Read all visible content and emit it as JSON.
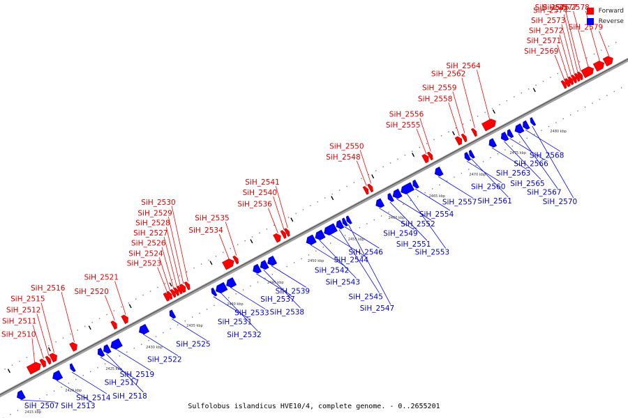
{
  "caption": "Sulfolobus islandicus HVE10/4, complete genome. - 0..2655201",
  "legend": [
    {
      "label": "Forward",
      "color": "#ff0000"
    },
    {
      "label": "Reverse",
      "color": "#0000ff"
    }
  ],
  "scale_ticks": [
    {
      "kbp": 2415,
      "label": "2415 kbp"
    },
    {
      "kbp": 2420,
      "label": "2420 kbp"
    },
    {
      "kbp": 2425,
      "label": "2425 kbp"
    },
    {
      "kbp": 2430,
      "label": "2430 kbp"
    },
    {
      "kbp": 2435,
      "label": "2435 kbp"
    },
    {
      "kbp": 2440,
      "label": "2440 kbp"
    },
    {
      "kbp": 2445,
      "label": "2445 kbp"
    },
    {
      "kbp": 2450,
      "label": "2450 kbp"
    },
    {
      "kbp": 2455,
      "label": "2455 kbp"
    },
    {
      "kbp": 2460,
      "label": "2460 kbp"
    },
    {
      "kbp": 2465,
      "label": "2465 kbp"
    },
    {
      "kbp": 2470,
      "label": "2470 kbp"
    },
    {
      "kbp": 2475,
      "label": "2475 kbp"
    },
    {
      "kbp": 2480,
      "label": "2480 kbp"
    }
  ],
  "forward_genes": [
    {
      "id": "SiH_2510",
      "start_kbp": 2416.9,
      "end_kbp": 2418.4
    },
    {
      "id": "SiH_2511",
      "start_kbp": 2418.5,
      "end_kbp": 2419.0
    },
    {
      "id": "SiH_2512",
      "start_kbp": 2419.2,
      "end_kbp": 2419.6
    },
    {
      "id": "SiH_2515",
      "start_kbp": 2419.7,
      "end_kbp": 2420.4
    },
    {
      "id": "SiH_2516",
      "start_kbp": 2422.2,
      "end_kbp": 2422.9
    },
    {
      "id": "SiH_2520",
      "start_kbp": 2427.3,
      "end_kbp": 2427.8
    },
    {
      "id": "SiH_2521",
      "start_kbp": 2428.6,
      "end_kbp": 2429.2
    },
    {
      "id": "SiH_2523",
      "start_kbp": 2433.8,
      "end_kbp": 2434.3
    },
    {
      "id": "SiH_2524",
      "start_kbp": 2434.3,
      "end_kbp": 2434.5
    },
    {
      "id": "SiH_2526",
      "start_kbp": 2434.7,
      "end_kbp": 2435.0
    },
    {
      "id": "SiH_2527",
      "start_kbp": 2435.1,
      "end_kbp": 2435.4
    },
    {
      "id": "SiH_2528",
      "start_kbp": 2435.5,
      "end_kbp": 2435.8
    },
    {
      "id": "SiH_2529",
      "start_kbp": 2435.8,
      "end_kbp": 2436.3
    },
    {
      "id": "SiH_2530",
      "start_kbp": 2436.4,
      "end_kbp": 2436.8
    },
    {
      "id": "SiH_2534",
      "start_kbp": 2441.1,
      "end_kbp": 2442.3
    },
    {
      "id": "SiH_2535",
      "start_kbp": 2442.4,
      "end_kbp": 2442.8
    },
    {
      "id": "SiH_2536",
      "start_kbp": 2447.4,
      "end_kbp": 2448.1
    },
    {
      "id": "SiH_2540",
      "start_kbp": 2448.3,
      "end_kbp": 2448.7
    },
    {
      "id": "SiH_2541",
      "start_kbp": 2448.8,
      "end_kbp": 2449.1
    },
    {
      "id": "SiH_2548",
      "start_kbp": 2458.5,
      "end_kbp": 2458.9
    },
    {
      "id": "SiH_2550",
      "start_kbp": 2459.1,
      "end_kbp": 2459.4
    },
    {
      "id": "SiH_2555",
      "start_kbp": 2465.8,
      "end_kbp": 2466.4
    },
    {
      "id": "SiH_2556",
      "start_kbp": 2466.5,
      "end_kbp": 2466.8
    },
    {
      "id": "SiH_2558",
      "start_kbp": 2469.9,
      "end_kbp": 2470.5
    },
    {
      "id": "SiH_2559",
      "start_kbp": 2470.7,
      "end_kbp": 2471.0
    },
    {
      "id": "SiH_2562",
      "start_kbp": 2472.0,
      "end_kbp": 2472.2
    },
    {
      "id": "SiH_2564",
      "start_kbp": 2473.2,
      "end_kbp": 2474.7
    },
    {
      "id": "SiH_2569",
      "start_kbp": 2483.1,
      "end_kbp": 2483.3
    },
    {
      "id": "SiH_2571",
      "start_kbp": 2483.4,
      "end_kbp": 2483.9
    },
    {
      "id": "SiH_2572",
      "start_kbp": 2483.9,
      "end_kbp": 2484.2
    },
    {
      "id": "SiH_2573",
      "start_kbp": 2484.3,
      "end_kbp": 2484.6
    },
    {
      "id": "SiH_2574",
      "start_kbp": 2484.7,
      "end_kbp": 2485.0
    },
    {
      "id": "SiH_2575",
      "start_kbp": 2485.1,
      "end_kbp": 2485.3
    },
    {
      "id": "SiH_2577",
      "start_kbp": 2485.5,
      "end_kbp": 2486.8
    },
    {
      "id": "SiH_2578",
      "start_kbp": 2487.0,
      "end_kbp": 2488.1
    },
    {
      "id": "SiH_2579",
      "start_kbp": 2488.2,
      "end_kbp": 2489.2
    }
  ],
  "reverse_genes": [
    {
      "id": "SiH_2507",
      "start_kbp": 2414.4,
      "end_kbp": 2415.2
    },
    {
      "id": "SiH_2513",
      "start_kbp": 2418.8,
      "end_kbp": 2419.8
    },
    {
      "id": "SiH_2514",
      "start_kbp": 2421.0,
      "end_kbp": 2421.4
    },
    {
      "id": "SiH_2517",
      "start_kbp": 2424.4,
      "end_kbp": 2425.0
    },
    {
      "id": "SiH_2518",
      "start_kbp": 2425.1,
      "end_kbp": 2425.8
    },
    {
      "id": "SiH_2519",
      "start_kbp": 2426.0,
      "end_kbp": 2427.2
    },
    {
      "id": "SiH_2522",
      "start_kbp": 2429.5,
      "end_kbp": 2430.5
    },
    {
      "id": "SiH_2525",
      "start_kbp": 2433.3,
      "end_kbp": 2433.8
    },
    {
      "id": "SiH_2531",
      "start_kbp": 2438.5,
      "end_kbp": 2438.9
    },
    {
      "id": "SiH_2532",
      "start_kbp": 2439.0,
      "end_kbp": 2440.2
    },
    {
      "id": "SiH_2533",
      "start_kbp": 2440.3,
      "end_kbp": 2441.3
    },
    {
      "id": "SiH_2537",
      "start_kbp": 2443.6,
      "end_kbp": 2444.4
    },
    {
      "id": "SiH_2538",
      "start_kbp": 2444.5,
      "end_kbp": 2445.3
    },
    {
      "id": "SiH_2539",
      "start_kbp": 2445.4,
      "end_kbp": 2446.3
    },
    {
      "id": "SiH_2542",
      "start_kbp": 2450.2,
      "end_kbp": 2451.2
    },
    {
      "id": "SiH_2543",
      "start_kbp": 2451.3,
      "end_kbp": 2452.3
    },
    {
      "id": "SiH_2544",
      "start_kbp": 2452.4,
      "end_kbp": 2453.8
    },
    {
      "id": "SiH_2545",
      "start_kbp": 2453.9,
      "end_kbp": 2454.6
    },
    {
      "id": "SiH_2546",
      "start_kbp": 2454.7,
      "end_kbp": 2455.1
    },
    {
      "id": "SiH_2547",
      "start_kbp": 2455.2,
      "end_kbp": 2455.6
    },
    {
      "id": "SiH_2549",
      "start_kbp": 2458.8,
      "end_kbp": 2459.6
    },
    {
      "id": "SiH_2551",
      "start_kbp": 2460.3,
      "end_kbp": 2460.8
    },
    {
      "id": "SiH_2552",
      "start_kbp": 2460.9,
      "end_kbp": 2461.8
    },
    {
      "id": "SiH_2553",
      "start_kbp": 2461.9,
      "end_kbp": 2463.3
    },
    {
      "id": "SiH_2554",
      "start_kbp": 2463.4,
      "end_kbp": 2463.9
    },
    {
      "id": "SiH_2557",
      "start_kbp": 2466.1,
      "end_kbp": 2466.9
    },
    {
      "id": "SiH_2560",
      "start_kbp": 2469.8,
      "end_kbp": 2470.3
    },
    {
      "id": "SiH_2561",
      "start_kbp": 2470.4,
      "end_kbp": 2470.8
    },
    {
      "id": "SiH_2563",
      "start_kbp": 2472.8,
      "end_kbp": 2473.5
    },
    {
      "id": "SiH_2565",
      "start_kbp": 2474.3,
      "end_kbp": 2475.0
    },
    {
      "id": "SiH_2566",
      "start_kbp": 2475.1,
      "end_kbp": 2475.6
    },
    {
      "id": "SiH_2567",
      "start_kbp": 2476.0,
      "end_kbp": 2476.9
    },
    {
      "id": "SiH_2568",
      "start_kbp": 2477.0,
      "end_kbp": 2477.6
    },
    {
      "id": "SiH_2570",
      "start_kbp": 2478.0,
      "end_kbp": 2478.3
    }
  ]
}
